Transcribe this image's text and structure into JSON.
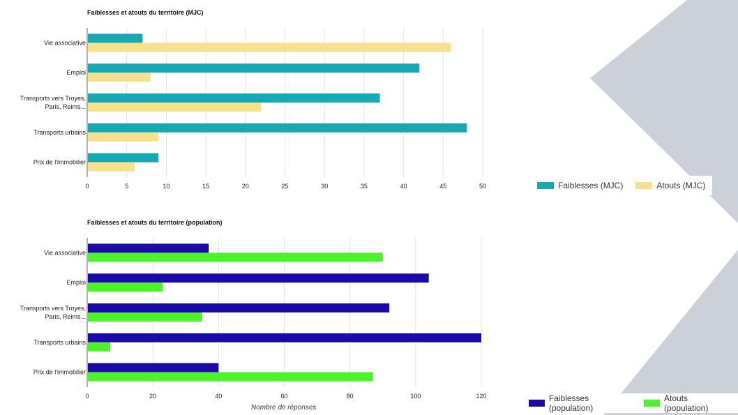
{
  "colors": {
    "bg_shape": "#ccd1d9",
    "mjc_weak": "#17a8b4",
    "mjc_strength": "#f6e28c",
    "pop_weak": "#1b0aa8",
    "pop_strength": "#4cf22a",
    "grid": "#e3e3e3",
    "axis": "#666666",
    "text": "#222222"
  },
  "charts": {
    "mjc": {
      "title": "Faiblesses et atouts du territoire (MJC)",
      "legend": [
        {
          "label": "Faiblesses (MJC)"
        },
        {
          "label": "Atouts (MJC)"
        }
      ]
    },
    "pop": {
      "title": "Faiblesses et atouts du territoire (population)",
      "xlabel": "Nombre de réponses",
      "legend": [
        {
          "label": "Faiblesses (population)"
        },
        {
          "label": "Atouts (population)"
        }
      ]
    }
  },
  "chart_data": [
    {
      "type": "bar",
      "orientation": "horizontal",
      "title": "Faiblesses et atouts du territoire (MJC)",
      "categories": [
        "Vie associative",
        "Emploi",
        "Transports vers Troyes, Paris, Reims...",
        "Transports urbains",
        "Prix de l'immobilier"
      ],
      "category_lines": [
        [
          "Vie associative"
        ],
        [
          "Emploi"
        ],
        [
          "Transports vers Troyes,",
          "Paris, Reims..."
        ],
        [
          "Transports urbains"
        ],
        [
          "Prix de l'immobilier"
        ]
      ],
      "series": [
        {
          "name": "Faiblesses (MJC)",
          "values": [
            7,
            42,
            37,
            48,
            9
          ]
        },
        {
          "name": "Atouts (MJC)",
          "values": [
            46,
            8,
            22,
            9,
            6
          ]
        }
      ],
      "xlim": [
        0,
        50
      ],
      "xticks": [
        0,
        5,
        10,
        15,
        20,
        25,
        30,
        35,
        40,
        45,
        50
      ],
      "xlabel": "",
      "grid": true,
      "legend_position": "bottom-right"
    },
    {
      "type": "bar",
      "orientation": "horizontal",
      "title": "Faiblesses et atouts du territoire (population)",
      "categories": [
        "Vie associative",
        "Emploi",
        "Transports vers Troyes, Paris, Reims...",
        "Transports urbains",
        "Prix de l'immobilier"
      ],
      "category_lines": [
        [
          "Vie associative"
        ],
        [
          "Emploi"
        ],
        [
          "Transports vers Troyes,",
          "Paris, Reims..."
        ],
        [
          "Transports urbains"
        ],
        [
          "Prix de l'immobilier"
        ]
      ],
      "series": [
        {
          "name": "Faiblesses (population)",
          "values": [
            37,
            104,
            92,
            120,
            40
          ]
        },
        {
          "name": "Atouts (population)",
          "values": [
            90,
            23,
            35,
            7,
            87
          ]
        }
      ],
      "xlim": [
        0,
        120
      ],
      "xticks": [
        0,
        20,
        40,
        60,
        80,
        100,
        120
      ],
      "xlabel": "Nombre de réponses",
      "grid": true,
      "legend_position": "bottom-right"
    }
  ]
}
